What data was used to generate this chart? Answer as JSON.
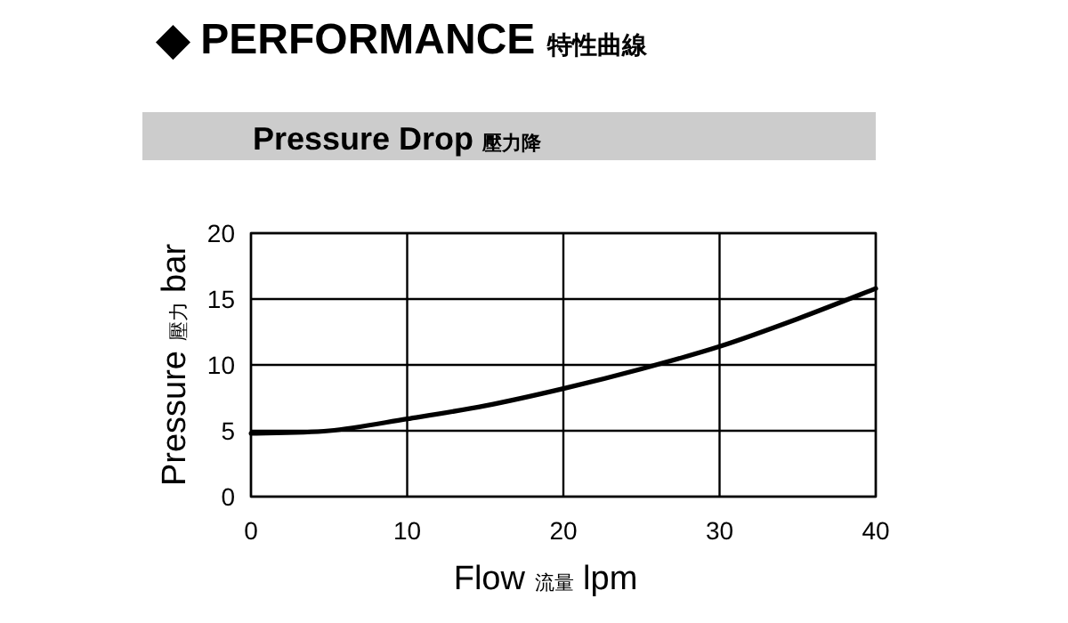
{
  "chart_data": {
    "type": "line",
    "title": "◆ PERFORMANCE 特性曲線",
    "subtitle": "Pressure Drop 壓力降",
    "xlabel": "Flow 流量 lpm",
    "ylabel": "Pressure 壓力 bar",
    "x": [
      0,
      5,
      10,
      15,
      20,
      25,
      30,
      35,
      40
    ],
    "series": [
      {
        "color": "#000000",
        "values": [
          4.8,
          5.0,
          5.9,
          6.9,
          8.2,
          9.7,
          11.4,
          13.5,
          15.8
        ]
      }
    ],
    "xlim": [
      0,
      40
    ],
    "ylim": [
      0,
      20
    ],
    "xticks": [
      0,
      10,
      20,
      30,
      40
    ],
    "yticks": [
      0,
      5,
      10,
      15,
      20
    ],
    "grid": true,
    "marker": "none",
    "line_style": "solid"
  }
}
